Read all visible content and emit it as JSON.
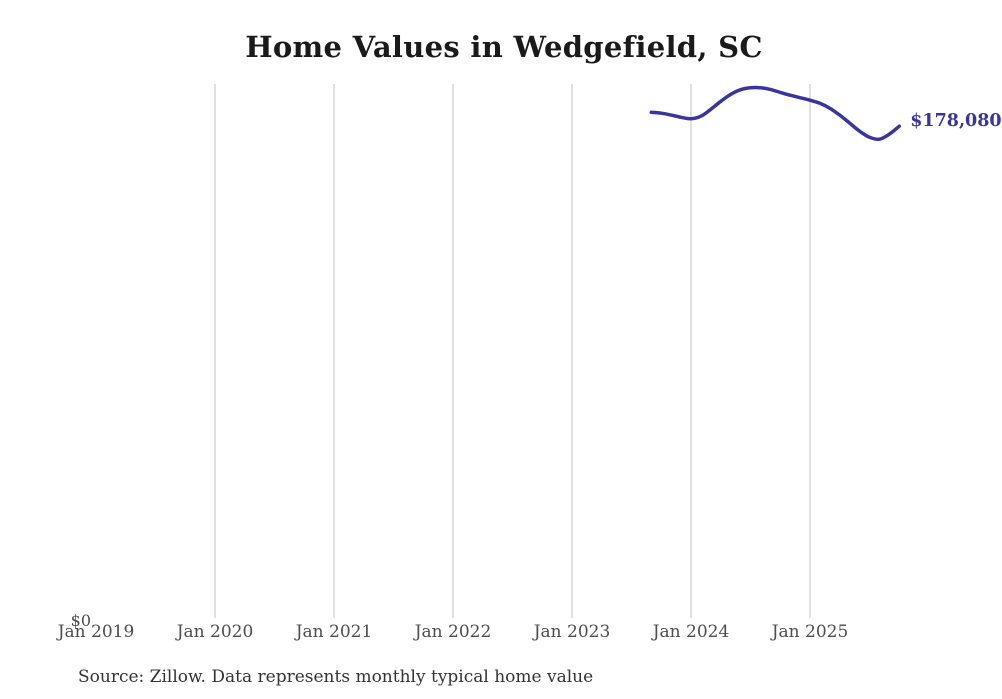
{
  "title": "Home Values in Wedgefield, SC",
  "source_note": "Source: Zillow. Data represents monthly typical home value",
  "y_axis": {
    "zero_label": "$0"
  },
  "latest_value_label": "$178,080",
  "colors": {
    "line": "#38359d",
    "latest_label": "#38359d",
    "gridline": "#cfcfcf",
    "tick_text": "#4d4d4d",
    "title_text": "#1a1a1a",
    "source_text": "#333333",
    "background": "#ffffff"
  },
  "chart_data": {
    "type": "line",
    "title": "Home Values in Wedgefield, SC",
    "series_name": "Monthly typical home value",
    "xlabel": "",
    "ylabel": "",
    "ylim": [
      0,
      192800
    ],
    "legend": "none",
    "grid": "vertical-only",
    "x_tick_labels": [
      "Jan 2019",
      "Jan 2020",
      "Jan 2021",
      "Jan 2022",
      "Jan 2023",
      "Jan 2024",
      "Jan 2025"
    ],
    "gridline_months": [
      "Jan 2020",
      "Jan 2021",
      "Jan 2022",
      "Jan 2023",
      "Jan 2024",
      "Jan 2025"
    ],
    "x": [
      "Sep 2023",
      "Oct 2023",
      "Nov 2023",
      "Dec 2023",
      "Jan 2024",
      "Feb 2024",
      "Mar 2024",
      "Apr 2024",
      "May 2024",
      "Jun 2024",
      "Jul 2024",
      "Aug 2024",
      "Sep 2024",
      "Oct 2024",
      "Nov 2024",
      "Dec 2024",
      "Jan 2025",
      "Feb 2025",
      "Mar 2025",
      "Apr 2025",
      "May 2025",
      "Jun 2025",
      "Jul 2025",
      "Aug 2025",
      "Sep 2025",
      "Oct 2025"
    ],
    "values": [
      183100,
      182800,
      182100,
      181300,
      180800,
      181700,
      184200,
      187100,
      189600,
      191300,
      192000,
      192000,
      191400,
      190300,
      189300,
      188400,
      187500,
      186400,
      184600,
      182100,
      179200,
      176300,
      174100,
      173400,
      175200,
      178080
    ],
    "end_label": "$178,080"
  }
}
